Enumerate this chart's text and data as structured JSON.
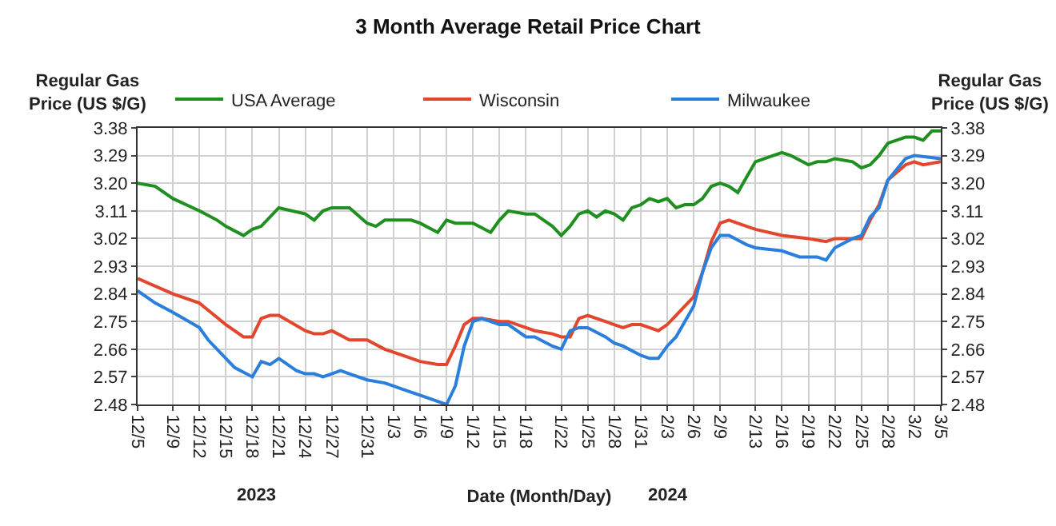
{
  "chart_data": {
    "type": "line",
    "title": "3 Month Average Retail Price Chart",
    "xlabel": "Date (Month/Day)",
    "ylabel": "Regular Gas Price (US $/G)",
    "y2label": "Regular Gas Price (US $/G)",
    "xlim": [
      "2023-12-05",
      "2024-03-05"
    ],
    "xticks": [
      {
        "value": "2023-12-05",
        "label": "12/5"
      },
      {
        "value": "2023-12-09",
        "label": "12/9"
      },
      {
        "value": "2023-12-12",
        "label": "12/12"
      },
      {
        "value": "2023-12-15",
        "label": "12/15"
      },
      {
        "value": "2023-12-18",
        "label": "12/18"
      },
      {
        "value": "2023-12-21",
        "label": "12/21"
      },
      {
        "value": "2023-12-24",
        "label": "12/24"
      },
      {
        "value": "2023-12-27",
        "label": "12/27"
      },
      {
        "value": "2023-12-31",
        "label": "12/31"
      },
      {
        "value": "2024-01-03",
        "label": "1/3"
      },
      {
        "value": "2024-01-06",
        "label": "1/6"
      },
      {
        "value": "2024-01-09",
        "label": "1/9"
      },
      {
        "value": "2024-01-12",
        "label": "1/12"
      },
      {
        "value": "2024-01-15",
        "label": "1/15"
      },
      {
        "value": "2024-01-18",
        "label": "1/18"
      },
      {
        "value": "2024-01-22",
        "label": "1/22"
      },
      {
        "value": "2024-01-25",
        "label": "1/25"
      },
      {
        "value": "2024-01-28",
        "label": "1/28"
      },
      {
        "value": "2024-01-31",
        "label": "1/31"
      },
      {
        "value": "2024-02-03",
        "label": "2/3"
      },
      {
        "value": "2024-02-06",
        "label": "2/6"
      },
      {
        "value": "2024-02-09",
        "label": "2/9"
      },
      {
        "value": "2024-02-13",
        "label": "2/13"
      },
      {
        "value": "2024-02-16",
        "label": "2/16"
      },
      {
        "value": "2024-02-19",
        "label": "2/19"
      },
      {
        "value": "2024-02-22",
        "label": "2/22"
      },
      {
        "value": "2024-02-25",
        "label": "2/25"
      },
      {
        "value": "2024-02-28",
        "label": "2/28"
      },
      {
        "value": "2024-03-02",
        "label": "3/2"
      },
      {
        "value": "2024-03-05",
        "label": "3/5"
      }
    ],
    "ylim": [
      2.48,
      3.38
    ],
    "yticks": [
      2.48,
      2.57,
      2.66,
      2.75,
      2.84,
      2.93,
      3.02,
      3.11,
      {
        "value": 3.2,
        "label": "3.20"
      },
      3.29,
      3.38
    ],
    "y2lim": [
      2.48,
      3.38
    ],
    "y2ticks": [
      2.48,
      2.57,
      2.66,
      2.75,
      2.84,
      2.93,
      3.02,
      3.11,
      {
        "value": 3.2,
        "label": "3.20"
      },
      3.29,
      3.38
    ],
    "grid": true,
    "legend": "top",
    "marker": "none",
    "line_style": "solid",
    "annotations": [
      "2023",
      "2024"
    ],
    "series": [
      {
        "name": "USA Average",
        "color": "#1f8f1f",
        "x": [
          "2023-12-05",
          "2023-12-07",
          "2023-12-09",
          "2023-12-12",
          "2023-12-14",
          "2023-12-15",
          "2023-12-17",
          "2023-12-18",
          "2023-12-19",
          "2023-12-21",
          "2023-12-24",
          "2023-12-25",
          "2023-12-26",
          "2023-12-27",
          "2023-12-29",
          "2023-12-31",
          "2024-01-01",
          "2024-01-02",
          "2024-01-03",
          "2024-01-05",
          "2024-01-06",
          "2024-01-08",
          "2024-01-09",
          "2024-01-10",
          "2024-01-12",
          "2024-01-14",
          "2024-01-15",
          "2024-01-16",
          "2024-01-18",
          "2024-01-19",
          "2024-01-21",
          "2024-01-22",
          "2024-01-23",
          "2024-01-24",
          "2024-01-25",
          "2024-01-26",
          "2024-01-27",
          "2024-01-28",
          "2024-01-29",
          "2024-01-30",
          "2024-01-31",
          "2024-02-01",
          "2024-02-02",
          "2024-02-03",
          "2024-02-04",
          "2024-02-05",
          "2024-02-06",
          "2024-02-07",
          "2024-02-08",
          "2024-02-09",
          "2024-02-10",
          "2024-02-11",
          "2024-02-12",
          "2024-02-13",
          "2024-02-15",
          "2024-02-16",
          "2024-02-17",
          "2024-02-19",
          "2024-02-20",
          "2024-02-21",
          "2024-02-22",
          "2024-02-24",
          "2024-02-25",
          "2024-02-26",
          "2024-02-27",
          "2024-02-28",
          "2024-02-29",
          "2024-03-01",
          "2024-03-02",
          "2024-03-03",
          "2024-03-04",
          "2024-03-05"
        ],
        "values": [
          3.2,
          3.19,
          3.15,
          3.11,
          3.08,
          3.06,
          3.03,
          3.05,
          3.06,
          3.12,
          3.1,
          3.08,
          3.11,
          3.12,
          3.12,
          3.07,
          3.06,
          3.08,
          3.08,
          3.08,
          3.07,
          3.04,
          3.08,
          3.07,
          3.07,
          3.04,
          3.08,
          3.11,
          3.1,
          3.1,
          3.06,
          3.03,
          3.06,
          3.1,
          3.11,
          3.09,
          3.11,
          3.1,
          3.08,
          3.12,
          3.13,
          3.15,
          3.14,
          3.15,
          3.12,
          3.13,
          3.13,
          3.15,
          3.19,
          3.2,
          3.19,
          3.17,
          3.22,
          3.27,
          3.29,
          3.3,
          3.29,
          3.26,
          3.27,
          3.27,
          3.28,
          3.27,
          3.25,
          3.26,
          3.29,
          3.33,
          3.34,
          3.35,
          3.35,
          3.34,
          3.37,
          3.37
        ]
      },
      {
        "name": "Wisconsin",
        "color": "#e2462c",
        "x": [
          "2023-12-05",
          "2023-12-09",
          "2023-12-12",
          "2023-12-15",
          "2023-12-17",
          "2023-12-18",
          "2023-12-19",
          "2023-12-20",
          "2023-12-21",
          "2023-12-24",
          "2023-12-25",
          "2023-12-26",
          "2023-12-27",
          "2023-12-29",
          "2023-12-31",
          "2024-01-02",
          "2024-01-03",
          "2024-01-04",
          "2024-01-06",
          "2024-01-08",
          "2024-01-09",
          "2024-01-10",
          "2024-01-11",
          "2024-01-12",
          "2024-01-13",
          "2024-01-15",
          "2024-01-16",
          "2024-01-18",
          "2024-01-19",
          "2024-01-21",
          "2024-01-22",
          "2024-01-23",
          "2024-01-24",
          "2024-01-25",
          "2024-01-27",
          "2024-01-28",
          "2024-01-29",
          "2024-01-30",
          "2024-01-31",
          "2024-02-01",
          "2024-02-02",
          "2024-02-03",
          "2024-02-04",
          "2024-02-05",
          "2024-02-06",
          "2024-02-07",
          "2024-02-08",
          "2024-02-09",
          "2024-02-10",
          "2024-02-12",
          "2024-02-13",
          "2024-02-16",
          "2024-02-19",
          "2024-02-21",
          "2024-02-22",
          "2024-02-24",
          "2024-02-25",
          "2024-02-26",
          "2024-02-27",
          "2024-02-28",
          "2024-03-01",
          "2024-03-02",
          "2024-03-03",
          "2024-03-05"
        ],
        "values": [
          2.89,
          2.84,
          2.81,
          2.74,
          2.7,
          2.7,
          2.76,
          2.77,
          2.77,
          2.72,
          2.71,
          2.71,
          2.72,
          2.69,
          2.69,
          2.66,
          2.65,
          2.64,
          2.62,
          2.61,
          2.61,
          2.67,
          2.74,
          2.76,
          2.76,
          2.75,
          2.75,
          2.73,
          2.72,
          2.71,
          2.7,
          2.7,
          2.76,
          2.77,
          2.75,
          2.74,
          2.73,
          2.74,
          2.74,
          2.73,
          2.72,
          2.74,
          2.77,
          2.8,
          2.83,
          2.91,
          3.01,
          3.07,
          3.08,
          3.06,
          3.05,
          3.03,
          3.02,
          3.01,
          3.02,
          3.02,
          3.02,
          3.08,
          3.13,
          3.21,
          3.26,
          3.27,
          3.26,
          3.27
        ]
      },
      {
        "name": "Milwaukee",
        "color": "#2b7fdc",
        "x": [
          "2023-12-05",
          "2023-12-07",
          "2023-12-09",
          "2023-12-12",
          "2023-12-13",
          "2023-12-15",
          "2023-12-16",
          "2023-12-18",
          "2023-12-19",
          "2023-12-20",
          "2023-12-21",
          "2023-12-23",
          "2023-12-24",
          "2023-12-25",
          "2023-12-26",
          "2023-12-27",
          "2023-12-28",
          "2023-12-29",
          "2023-12-31",
          "2024-01-02",
          "2024-01-03",
          "2024-01-04",
          "2024-01-06",
          "2024-01-08",
          "2024-01-09",
          "2024-01-10",
          "2024-01-11",
          "2024-01-12",
          "2024-01-13",
          "2024-01-15",
          "2024-01-16",
          "2024-01-18",
          "2024-01-19",
          "2024-01-21",
          "2024-01-22",
          "2024-01-23",
          "2024-01-24",
          "2024-01-25",
          "2024-01-27",
          "2024-01-28",
          "2024-01-29",
          "2024-01-31",
          "2024-02-01",
          "2024-02-02",
          "2024-02-03",
          "2024-02-04",
          "2024-02-06",
          "2024-02-07",
          "2024-02-08",
          "2024-02-09",
          "2024-02-10",
          "2024-02-12",
          "2024-02-13",
          "2024-02-16",
          "2024-02-18",
          "2024-02-19",
          "2024-02-20",
          "2024-02-21",
          "2024-02-22",
          "2024-02-24",
          "2024-02-25",
          "2024-02-26",
          "2024-02-27",
          "2024-02-28",
          "2024-03-01",
          "2024-03-02",
          "2024-03-05"
        ],
        "values": [
          2.85,
          2.81,
          2.78,
          2.73,
          2.69,
          2.63,
          2.6,
          2.57,
          2.62,
          2.61,
          2.63,
          2.59,
          2.58,
          2.58,
          2.57,
          2.58,
          2.59,
          2.58,
          2.56,
          2.55,
          2.54,
          2.53,
          2.51,
          2.49,
          2.48,
          2.54,
          2.67,
          2.75,
          2.76,
          2.74,
          2.74,
          2.7,
          2.7,
          2.67,
          2.66,
          2.72,
          2.73,
          2.73,
          2.7,
          2.68,
          2.67,
          2.64,
          2.63,
          2.63,
          2.67,
          2.7,
          2.8,
          2.91,
          2.99,
          3.03,
          3.03,
          3.0,
          2.99,
          2.98,
          2.96,
          2.96,
          2.96,
          2.95,
          2.99,
          3.02,
          3.03,
          3.09,
          3.12,
          3.21,
          3.28,
          3.29,
          3.28
        ]
      }
    ]
  }
}
